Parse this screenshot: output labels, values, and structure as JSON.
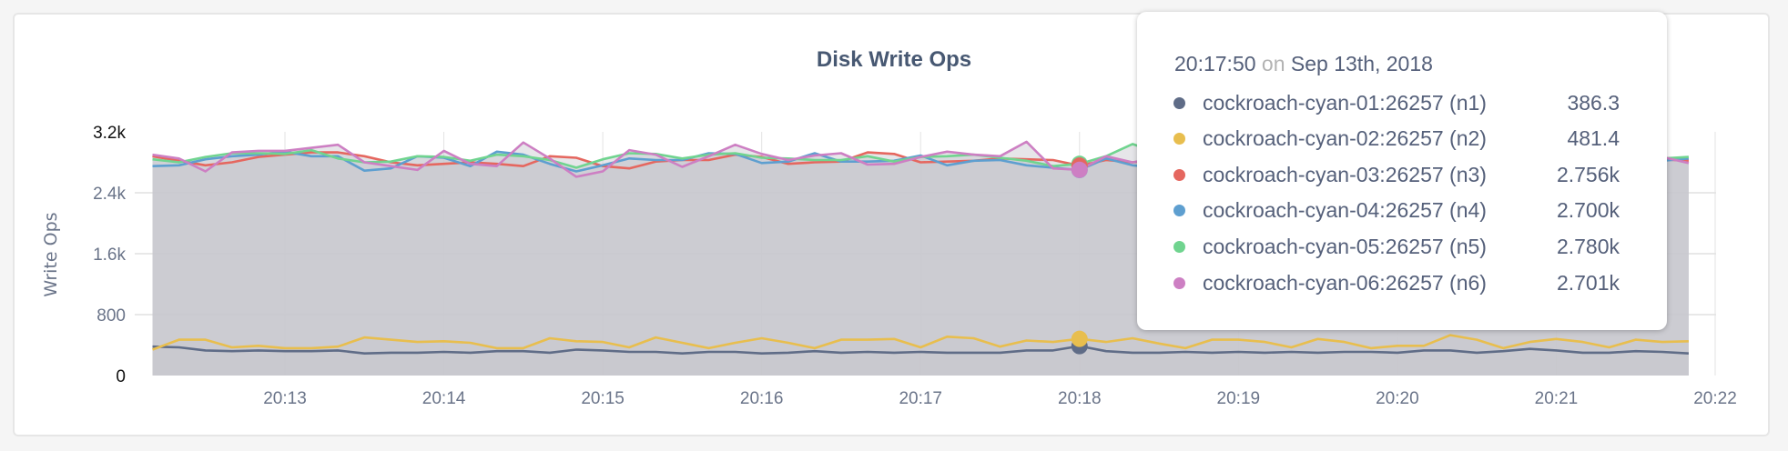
{
  "chart_data": {
    "type": "area",
    "title": "Disk Write Ops",
    "ylabel": "Write Ops",
    "xlabel": "",
    "ylim": [
      0,
      3200
    ],
    "y_ticks": [
      "0",
      "800",
      "1.6k",
      "2.4k",
      "3.2k"
    ],
    "y_tick_values": [
      0,
      800,
      1600,
      2400,
      3200
    ],
    "x_ticks": [
      "20:13",
      "20:14",
      "20:15",
      "20:16",
      "20:17",
      "20:18",
      "20:19",
      "20:20",
      "20:21",
      "20:22"
    ],
    "x_range": [
      "20:12:10",
      "20:22:00"
    ],
    "x_first": "20:12:10",
    "x_step_seconds": 10,
    "grid": true,
    "series": [
      {
        "name": "cockroach-cyan-01:26257 (n1)",
        "color": "#5f6c87",
        "values": [
          380,
          370,
          330,
          320,
          330,
          320,
          320,
          330,
          290,
          300,
          300,
          310,
          300,
          320,
          320,
          300,
          340,
          330,
          310,
          310,
          290,
          310,
          310,
          290,
          300,
          320,
          300,
          310,
          300,
          310,
          300,
          300,
          300,
          330,
          330,
          386.3,
          320,
          300,
          300,
          310,
          300,
          310,
          300,
          310,
          300,
          310,
          310,
          300,
          330,
          330,
          300,
          320,
          350,
          330,
          300,
          300,
          320,
          310,
          290
        ]
      },
      {
        "name": "cockroach-cyan-02:26257 (n2)",
        "color": "#e8be4e",
        "values": [
          340,
          470,
          470,
          370,
          390,
          360,
          360,
          380,
          500,
          470,
          440,
          450,
          430,
          360,
          360,
          490,
          450,
          440,
          370,
          500,
          430,
          360,
          430,
          490,
          430,
          360,
          470,
          470,
          480,
          370,
          510,
          490,
          380,
          460,
          440,
          481.4,
          440,
          490,
          420,
          360,
          470,
          470,
          440,
          370,
          480,
          440,
          360,
          390,
          390,
          530,
          470,
          360,
          440,
          480,
          440,
          370,
          470,
          440,
          450
        ]
      },
      {
        "name": "cockroach-cyan-03:26257 (n3)",
        "color": "#e5675f",
        "values": [
          2880,
          2820,
          2760,
          2800,
          2870,
          2900,
          2930,
          2930,
          2880,
          2800,
          2760,
          2780,
          2800,
          2780,
          2750,
          2880,
          2860,
          2750,
          2720,
          2810,
          2830,
          2830,
          2900,
          2870,
          2780,
          2800,
          2810,
          2930,
          2910,
          2800,
          2810,
          2820,
          2850,
          2840,
          2830,
          2756,
          2830,
          2800,
          2840,
          2860,
          2830,
          2850,
          2830,
          2870,
          2900,
          2850,
          2830,
          2850,
          2800,
          2780,
          2800,
          2840,
          2820,
          2830,
          2790,
          2850,
          2830,
          2840,
          2820
        ]
      },
      {
        "name": "cockroach-cyan-04:26257 (n4)",
        "color": "#5e9fd0",
        "values": [
          2750,
          2760,
          2840,
          2880,
          2900,
          2940,
          2880,
          2880,
          2690,
          2720,
          2880,
          2860,
          2750,
          2940,
          2900,
          2780,
          2680,
          2760,
          2850,
          2830,
          2830,
          2920,
          2910,
          2790,
          2810,
          2920,
          2810,
          2810,
          2820,
          2890,
          2760,
          2820,
          2830,
          2760,
          2730,
          2700,
          2850,
          2760,
          2730,
          2800,
          2760,
          2810,
          2840,
          2760,
          2800,
          2830,
          2850,
          2870,
          2800,
          2760,
          2820,
          2900,
          2860,
          2870,
          2830,
          2820,
          2780,
          2820,
          2850
        ]
      },
      {
        "name": "cockroach-cyan-05:26257 (n5)",
        "color": "#70d48f",
        "values": [
          2840,
          2800,
          2870,
          2920,
          2920,
          2910,
          2960,
          2850,
          2800,
          2810,
          2880,
          2870,
          2820,
          2900,
          2880,
          2830,
          2730,
          2840,
          2920,
          2910,
          2850,
          2900,
          2920,
          2860,
          2850,
          2830,
          2830,
          2880,
          2810,
          2870,
          2880,
          2900,
          2860,
          2820,
          2750,
          2780,
          2880,
          3040,
          2920,
          2870,
          2900,
          2870,
          2910,
          2880,
          2850,
          2830,
          2870,
          2900,
          2850,
          2830,
          2860,
          2890,
          2870,
          2880,
          2850,
          2840,
          2880,
          2850,
          2870
        ]
      },
      {
        "name": "cockroach-cyan-06:26257 (n6)",
        "color": "#cd7fc3",
        "values": [
          2900,
          2850,
          2680,
          2930,
          2950,
          2950,
          2990,
          3030,
          2800,
          2750,
          2700,
          2950,
          2780,
          2750,
          3060,
          2850,
          2610,
          2680,
          2960,
          2900,
          2740,
          2880,
          3030,
          2910,
          2830,
          2890,
          2920,
          2770,
          2780,
          2870,
          2940,
          2900,
          2880,
          3070,
          2720,
          2701,
          2880,
          2800,
          2860,
          2840,
          2850,
          2870,
          2900,
          2780,
          2830,
          2880,
          2840,
          2820,
          2850,
          2830,
          2860,
          2870,
          2840,
          2900,
          2820,
          2850,
          2840,
          2870,
          2790
        ]
      }
    ],
    "hover": {
      "x": "20:18"
    }
  },
  "tooltip": {
    "time": "20:17:50",
    "on": "on",
    "date": "Sep 13th, 2018",
    "rows": [
      {
        "label": "cockroach-cyan-01:26257 (n1)",
        "value": "386.3",
        "color": "#5f6c87"
      },
      {
        "label": "cockroach-cyan-02:26257 (n2)",
        "value": "481.4",
        "color": "#e8be4e"
      },
      {
        "label": "cockroach-cyan-03:26257 (n3)",
        "value": "2.756k",
        "color": "#e5675f"
      },
      {
        "label": "cockroach-cyan-04:26257 (n4)",
        "value": "2.700k",
        "color": "#5e9fd0"
      },
      {
        "label": "cockroach-cyan-05:26257 (n5)",
        "value": "2.780k",
        "color": "#70d48f"
      },
      {
        "label": "cockroach-cyan-06:26257 (n6)",
        "value": "2.701k",
        "color": "#cd7fc3"
      }
    ]
  }
}
